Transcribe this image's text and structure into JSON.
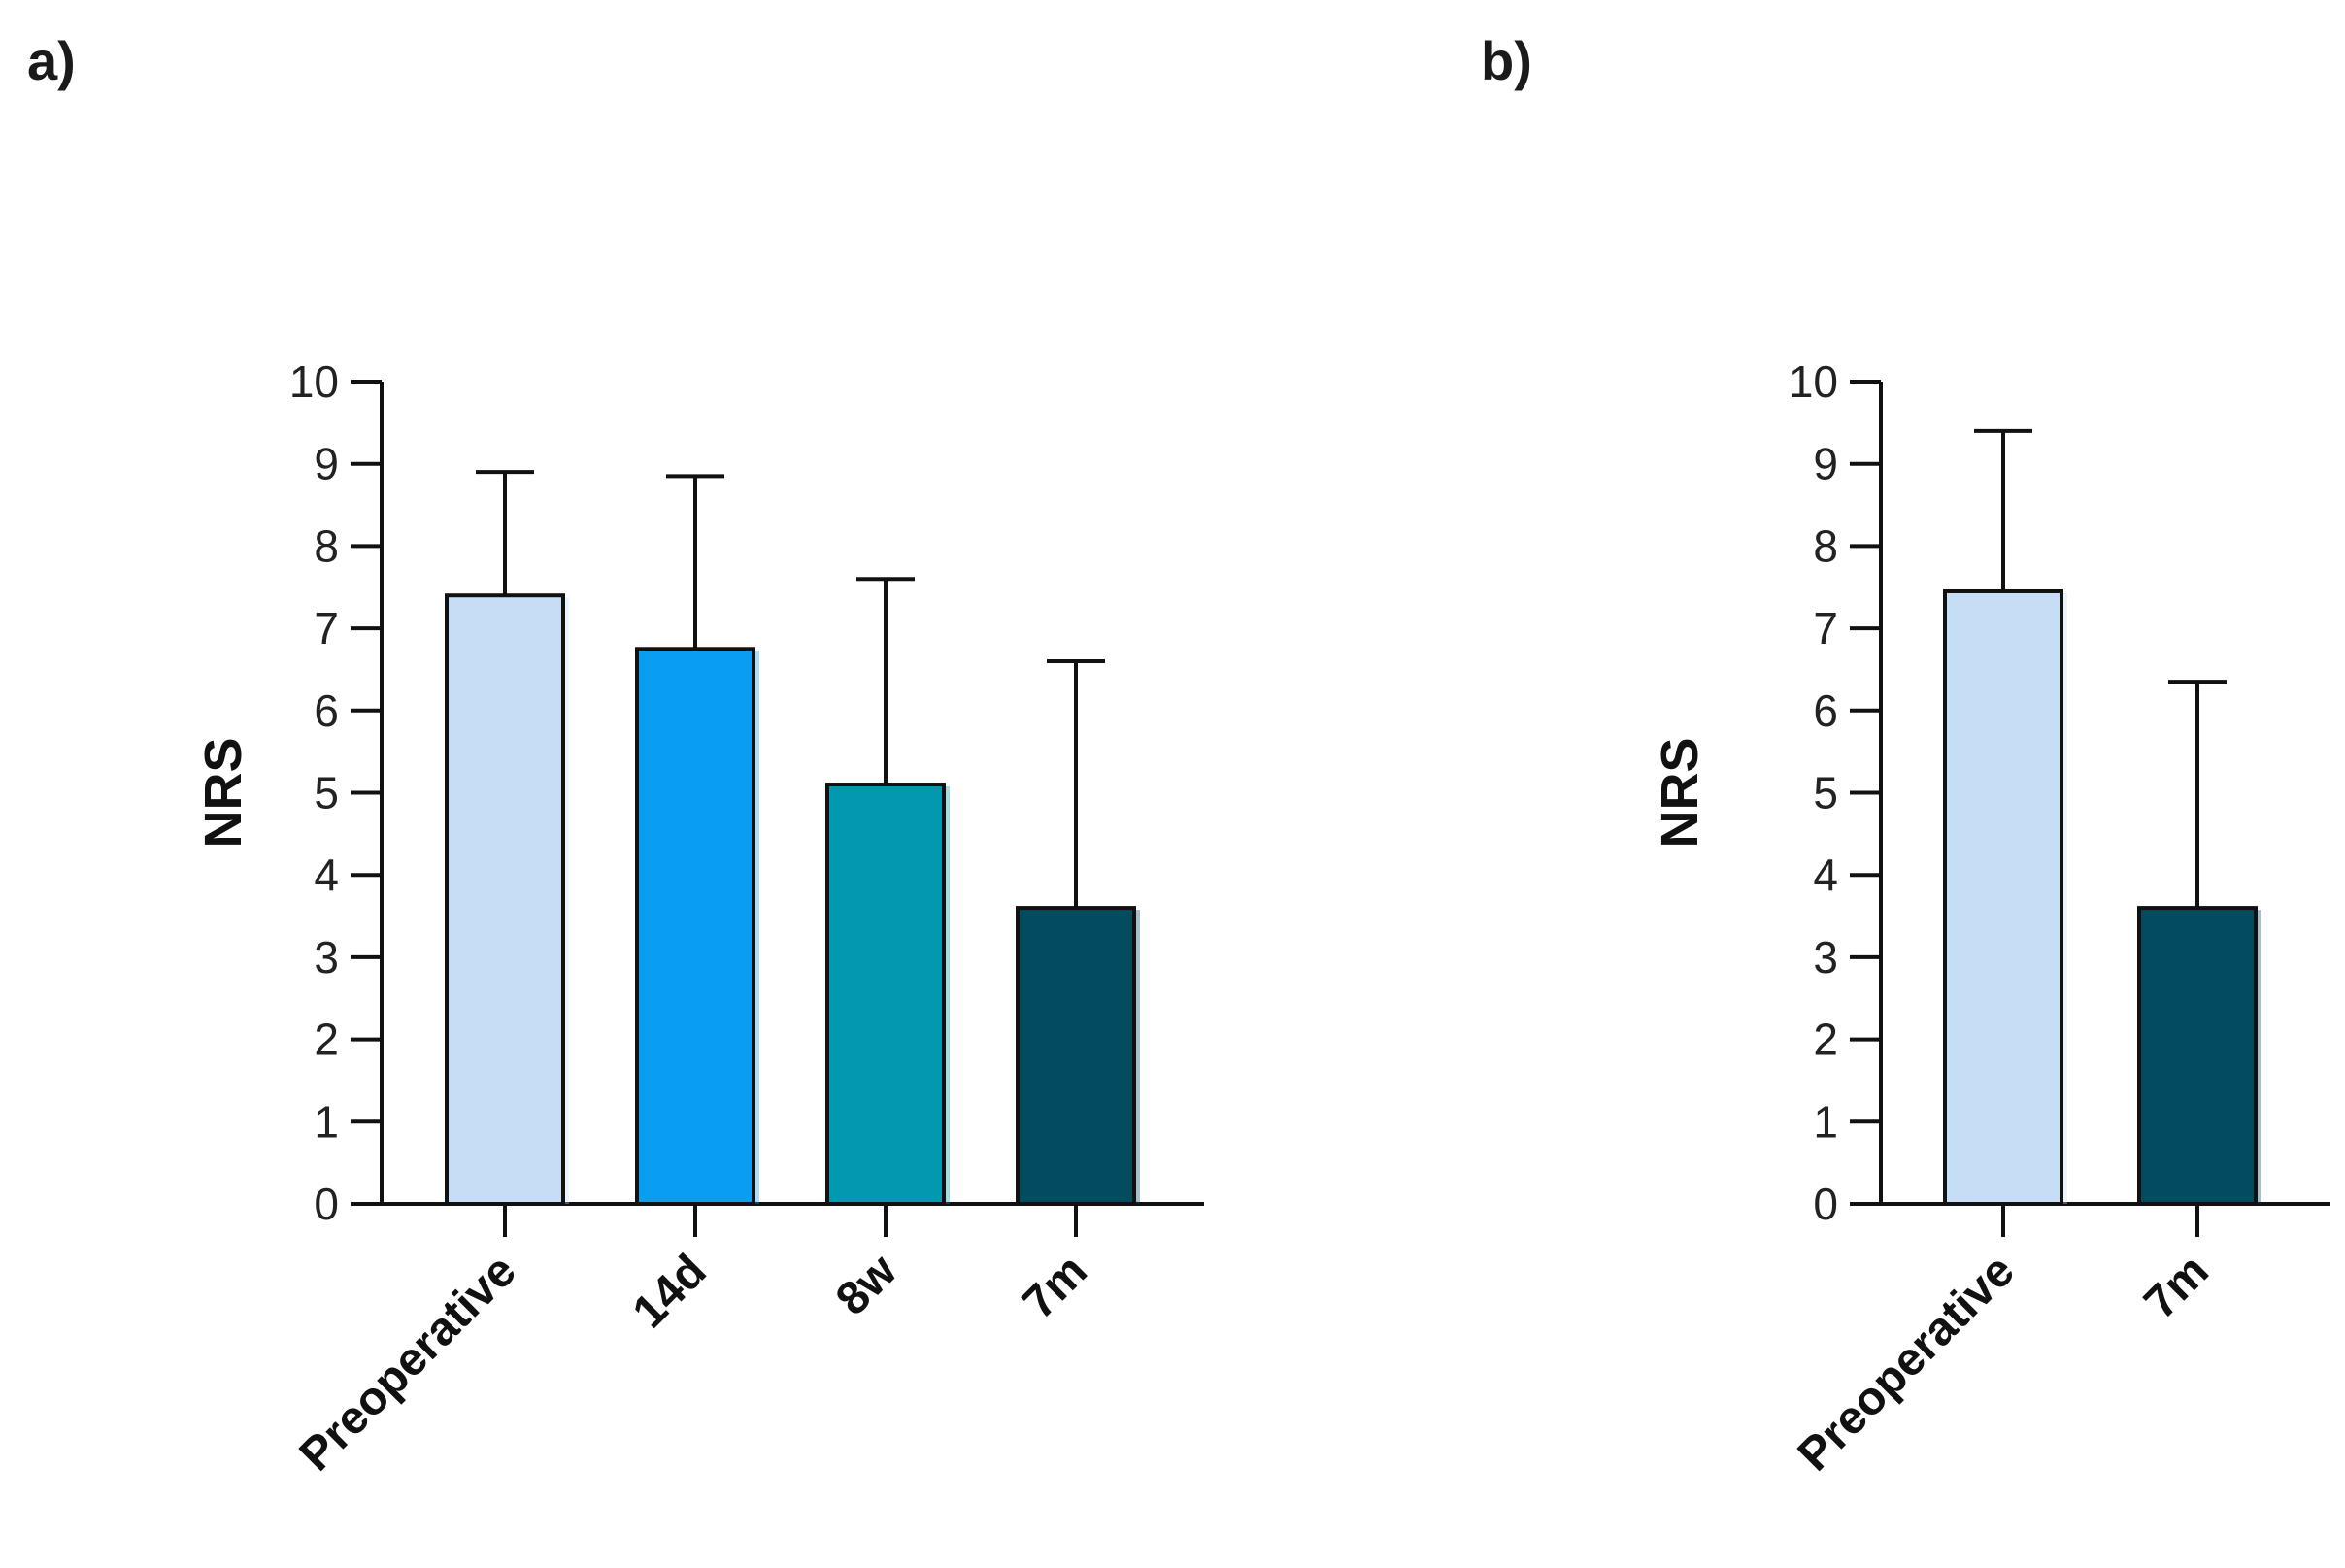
{
  "chart_data": [
    {
      "type": "bar",
      "panel_label": "a)",
      "categories": [
        "Preoperative",
        "14d",
        "8w",
        "7m"
      ],
      "values": [
        7.4,
        6.75,
        5.1,
        3.6
      ],
      "errors": [
        1.5,
        2.1,
        2.5,
        3.0
      ],
      "colors": [
        "#c6def5",
        "#0a9ef2",
        "#0299b0",
        "#034b5e"
      ],
      "title": "",
      "xlabel": "",
      "ylabel": "NRS",
      "ylim": [
        0,
        10
      ],
      "yticks": [
        0,
        1,
        2,
        3,
        4,
        5,
        6,
        7,
        8,
        9,
        10
      ],
      "grid": false
    },
    {
      "type": "bar",
      "panel_label": "b)",
      "categories": [
        "Preoperative",
        "7m"
      ],
      "values": [
        7.45,
        3.6
      ],
      "errors": [
        1.95,
        2.75
      ],
      "colors": [
        "#c6def5",
        "#034b5e"
      ],
      "title": "",
      "xlabel": "",
      "ylabel": "NRS",
      "ylim": [
        0,
        10
      ],
      "yticks": [
        0,
        1,
        2,
        3,
        4,
        5,
        6,
        7,
        8,
        9,
        10
      ],
      "grid": false
    }
  ]
}
